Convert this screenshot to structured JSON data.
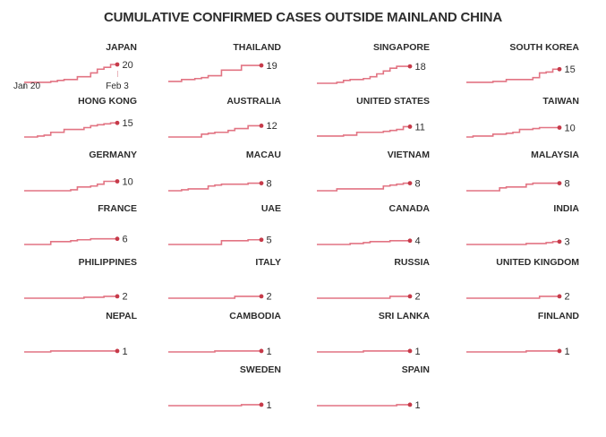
{
  "title": "CUMULATIVE CONFIRMED CASES OUTSIDE MAINLAND CHINA",
  "colors": {
    "line": "#e27483",
    "dot": "#c63a49",
    "text": "#2d2d2d",
    "axis_tick_start": "#9a9a9a",
    "axis_tick_end": "#eab6bc"
  },
  "axis": {
    "start_label": "Jan 20",
    "end_label": "Feb 3"
  },
  "chart_data": {
    "type": "line",
    "variant": "step-small-multiples",
    "grid_columns": 4,
    "x": [
      "Jan 20",
      "Jan 21",
      "Jan 22",
      "Jan 23",
      "Jan 24",
      "Jan 25",
      "Jan 26",
      "Jan 27",
      "Jan 28",
      "Jan 29",
      "Jan 30",
      "Jan 31",
      "Feb 1",
      "Feb 2",
      "Feb 3"
    ],
    "xlim": [
      "Jan 20",
      "Feb 3"
    ],
    "ylim": [
      0,
      20
    ],
    "legend": "none",
    "series": [
      {
        "name": "JAPAN",
        "final": 20,
        "values": [
          1,
          1,
          1,
          1,
          2,
          3,
          4,
          4,
          7,
          7,
          11,
          15,
          17,
          20,
          20
        ],
        "show_axis": true
      },
      {
        "name": "THAILAND",
        "final": 19,
        "values": [
          2,
          2,
          4,
          4,
          5,
          6,
          8,
          8,
          14,
          14,
          14,
          19,
          19,
          19,
          19
        ]
      },
      {
        "name": "SINGAPORE",
        "final": 18,
        "values": [
          0,
          0,
          0,
          1,
          3,
          4,
          4,
          5,
          7,
          10,
          13,
          16,
          18,
          18,
          18
        ]
      },
      {
        "name": "SOUTH KOREA",
        "final": 15,
        "values": [
          1,
          1,
          1,
          1,
          2,
          2,
          4,
          4,
          4,
          4,
          6,
          11,
          12,
          15,
          15
        ]
      },
      {
        "name": "HONG KONG",
        "final": 15,
        "values": [
          0,
          0,
          1,
          2,
          5,
          5,
          8,
          8,
          8,
          10,
          12,
          13,
          14,
          15,
          15
        ]
      },
      {
        "name": "AUSTRALIA",
        "final": 12,
        "values": [
          0,
          0,
          0,
          0,
          0,
          3,
          4,
          5,
          5,
          7,
          9,
          9,
          12,
          12,
          12
        ]
      },
      {
        "name": "UNITED STATES",
        "final": 11,
        "values": [
          1,
          1,
          1,
          1,
          2,
          2,
          5,
          5,
          5,
          5,
          6,
          7,
          8,
          11,
          11
        ]
      },
      {
        "name": "TAIWAN",
        "final": 10,
        "values": [
          0,
          1,
          1,
          1,
          3,
          3,
          4,
          5,
          8,
          8,
          9,
          10,
          10,
          10,
          10
        ]
      },
      {
        "name": "GERMANY",
        "final": 10,
        "values": [
          0,
          0,
          0,
          0,
          0,
          0,
          0,
          1,
          4,
          4,
          5,
          7,
          10,
          10,
          10
        ]
      },
      {
        "name": "MACAU",
        "final": 8,
        "values": [
          0,
          0,
          1,
          2,
          2,
          2,
          5,
          6,
          7,
          7,
          7,
          7,
          8,
          8,
          8
        ]
      },
      {
        "name": "VIETNAM",
        "final": 8,
        "values": [
          0,
          0,
          0,
          2,
          2,
          2,
          2,
          2,
          2,
          2,
          5,
          6,
          7,
          8,
          8
        ]
      },
      {
        "name": "MALAYSIA",
        "final": 8,
        "values": [
          0,
          0,
          0,
          0,
          0,
          3,
          4,
          4,
          4,
          7,
          8,
          8,
          8,
          8,
          8
        ]
      },
      {
        "name": "FRANCE",
        "final": 6,
        "values": [
          0,
          0,
          0,
          0,
          3,
          3,
          3,
          4,
          5,
          5,
          6,
          6,
          6,
          6,
          6
        ]
      },
      {
        "name": "UAE",
        "final": 5,
        "values": [
          0,
          0,
          0,
          0,
          0,
          0,
          0,
          0,
          4,
          4,
          4,
          4,
          5,
          5,
          5
        ]
      },
      {
        "name": "CANADA",
        "final": 4,
        "values": [
          0,
          0,
          0,
          0,
          0,
          1,
          1,
          2,
          3,
          3,
          3,
          4,
          4,
          4,
          4
        ]
      },
      {
        "name": "INDIA",
        "final": 3,
        "values": [
          0,
          0,
          0,
          0,
          0,
          0,
          0,
          0,
          0,
          1,
          1,
          1,
          2,
          3,
          3
        ]
      },
      {
        "name": "PHILIPPINES",
        "final": 2,
        "values": [
          0,
          0,
          0,
          0,
          0,
          0,
          0,
          0,
          0,
          1,
          1,
          1,
          2,
          2,
          2
        ]
      },
      {
        "name": "ITALY",
        "final": 2,
        "values": [
          0,
          0,
          0,
          0,
          0,
          0,
          0,
          0,
          0,
          0,
          2,
          2,
          2,
          2,
          2
        ]
      },
      {
        "name": "RUSSIA",
        "final": 2,
        "values": [
          0,
          0,
          0,
          0,
          0,
          0,
          0,
          0,
          0,
          0,
          0,
          2,
          2,
          2,
          2
        ]
      },
      {
        "name": "UNITED KINGDOM",
        "final": 2,
        "values": [
          0,
          0,
          0,
          0,
          0,
          0,
          0,
          0,
          0,
          0,
          0,
          2,
          2,
          2,
          2
        ]
      },
      {
        "name": "NEPAL",
        "final": 1,
        "values": [
          0,
          0,
          0,
          0,
          1,
          1,
          1,
          1,
          1,
          1,
          1,
          1,
          1,
          1,
          1
        ]
      },
      {
        "name": "CAMBODIA",
        "final": 1,
        "values": [
          0,
          0,
          0,
          0,
          0,
          0,
          0,
          1,
          1,
          1,
          1,
          1,
          1,
          1,
          1
        ]
      },
      {
        "name": "SRI LANKA",
        "final": 1,
        "values": [
          0,
          0,
          0,
          0,
          0,
          0,
          0,
          1,
          1,
          1,
          1,
          1,
          1,
          1,
          1
        ]
      },
      {
        "name": "FINLAND",
        "final": 1,
        "values": [
          0,
          0,
          0,
          0,
          0,
          0,
          0,
          0,
          0,
          1,
          1,
          1,
          1,
          1,
          1
        ]
      },
      {
        "name": "SWEDEN",
        "final": 1,
        "values": [
          0,
          0,
          0,
          0,
          0,
          0,
          0,
          0,
          0,
          0,
          0,
          1,
          1,
          1,
          1
        ],
        "col": 2
      },
      {
        "name": "SPAIN",
        "final": 1,
        "values": [
          0,
          0,
          0,
          0,
          0,
          0,
          0,
          0,
          0,
          0,
          0,
          0,
          1,
          1,
          1
        ],
        "col": 3
      }
    ]
  }
}
